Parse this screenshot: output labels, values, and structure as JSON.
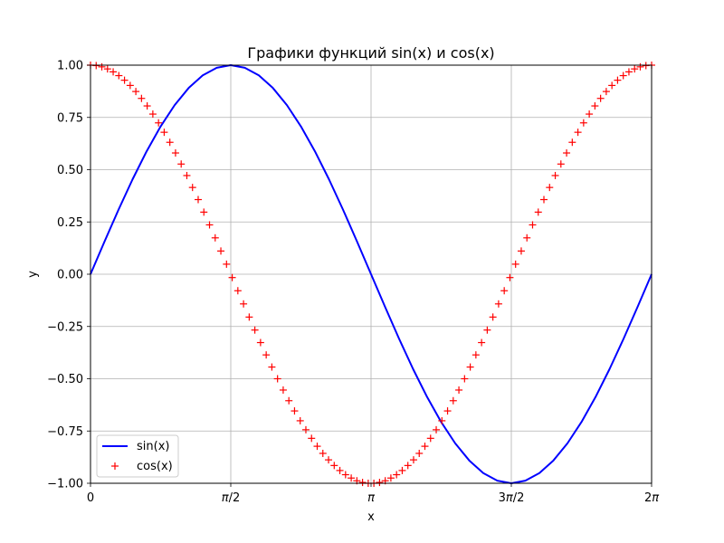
{
  "chart_data": {
    "type": "line",
    "title": "Графики функций sin(x) и cos(x)",
    "xlabel": "x",
    "ylabel": "y",
    "xlim": [
      0,
      6.283185307179586
    ],
    "ylim": [
      -1.0,
      1.0
    ],
    "grid": true,
    "legend_position": "lower-left",
    "x_ticks": [
      {
        "value": 0,
        "label": "0",
        "label_parts": [
          {
            "t": "0",
            "italic": false
          }
        ]
      },
      {
        "value": 1.5707963267948966,
        "label": "π/2",
        "label_parts": [
          {
            "t": "π",
            "italic": true
          },
          {
            "t": "/2",
            "italic": false
          }
        ]
      },
      {
        "value": 3.141592653589793,
        "label": "π",
        "label_parts": [
          {
            "t": "π",
            "italic": true
          }
        ]
      },
      {
        "value": 4.71238898038469,
        "label": "3π/2",
        "label_parts": [
          {
            "t": "3",
            "italic": false
          },
          {
            "t": "π",
            "italic": true
          },
          {
            "t": "/2",
            "italic": false
          }
        ]
      },
      {
        "value": 6.283185307179586,
        "label": "2π",
        "label_parts": [
          {
            "t": "2",
            "italic": false
          },
          {
            "t": "π",
            "italic": true
          }
        ]
      }
    ],
    "y_ticks": [
      {
        "value": 1.0,
        "label": "1.00"
      },
      {
        "value": 0.75,
        "label": "0.75"
      },
      {
        "value": 0.5,
        "label": "0.50"
      },
      {
        "value": 0.25,
        "label": "0.25"
      },
      {
        "value": 0.0,
        "label": "0.00"
      },
      {
        "value": -0.25,
        "label": "−0.25"
      },
      {
        "value": -0.5,
        "label": "−0.50"
      },
      {
        "value": -0.75,
        "label": "−0.75"
      },
      {
        "value": -1.0,
        "label": "−1.00"
      }
    ],
    "series": [
      {
        "name": "sin(x)",
        "style": "line",
        "color": "#0000ff",
        "x": [
          0,
          0.1571,
          0.3142,
          0.4712,
          0.6283,
          0.7854,
          0.9425,
          1.0996,
          1.2566,
          1.4137,
          1.5708,
          1.7279,
          1.885,
          2.042,
          2.1991,
          2.3562,
          2.5133,
          2.6704,
          2.8274,
          2.9845,
          3.1416,
          3.2987,
          3.4558,
          3.6128,
          3.7699,
          3.927,
          4.0841,
          4.2412,
          4.3982,
          4.5553,
          4.7124,
          4.8695,
          5.0265,
          5.1836,
          5.3407,
          5.4978,
          5.6549,
          5.8119,
          5.969,
          6.1261,
          6.2832
        ],
        "y": [
          0.0,
          0.1564,
          0.309,
          0.454,
          0.5878,
          0.7071,
          0.809,
          0.891,
          0.9511,
          0.9877,
          1.0,
          0.9877,
          0.9511,
          0.891,
          0.809,
          0.7071,
          0.5878,
          0.454,
          0.309,
          0.1564,
          0.0,
          -0.1564,
          -0.309,
          -0.454,
          -0.5878,
          -0.7071,
          -0.809,
          -0.891,
          -0.9511,
          -0.9877,
          -1.0,
          -0.9877,
          -0.9511,
          -0.891,
          -0.809,
          -0.7071,
          -0.5878,
          -0.454,
          -0.309,
          -0.1564,
          0.0
        ]
      },
      {
        "name": "cos(x)",
        "style": "marker-plus",
        "color": "#ff0000",
        "x": [
          0,
          0.0635,
          0.1269,
          0.1904,
          0.2539,
          0.3173,
          0.3808,
          0.4443,
          0.5077,
          0.5712,
          0.6347,
          0.6981,
          0.7616,
          0.8251,
          0.8885,
          0.952,
          1.0155,
          1.0789,
          1.1424,
          1.2059,
          1.2693,
          1.3328,
          1.3963,
          1.4597,
          1.5232,
          1.5867,
          1.6501,
          1.7136,
          1.7771,
          1.8405,
          1.904,
          1.9675,
          2.0309,
          2.0944,
          2.1579,
          2.2213,
          2.2848,
          2.3483,
          2.4117,
          2.4752,
          2.5387,
          2.6021,
          2.6656,
          2.7291,
          2.7925,
          2.856,
          2.9195,
          2.9829,
          3.0464,
          3.1099,
          3.1733,
          3.2368,
          3.3003,
          3.3637,
          3.4272,
          3.4907,
          3.5541,
          3.6176,
          3.6811,
          3.7445,
          3.808,
          3.8715,
          3.9349,
          3.9984,
          4.0619,
          4.1253,
          4.1888,
          4.2523,
          4.3157,
          4.3792,
          4.4427,
          4.5061,
          4.5696,
          4.6331,
          4.6965,
          4.76,
          4.8235,
          4.8869,
          4.9504,
          5.0139,
          5.0773,
          5.1408,
          5.2043,
          5.2677,
          5.3312,
          5.3947,
          5.4581,
          5.5216,
          5.5851,
          5.6485,
          5.712,
          5.7755,
          5.8389,
          5.9024,
          5.9659,
          6.0293,
          6.0928,
          6.1563,
          6.2197,
          6.2832
        ],
        "y": [
          1.0,
          0.998,
          0.992,
          0.982,
          0.968,
          0.95,
          0.928,
          0.903,
          0.874,
          0.841,
          0.805,
          0.766,
          0.724,
          0.679,
          0.631,
          0.58,
          0.527,
          0.472,
          0.415,
          0.357,
          0.297,
          0.236,
          0.174,
          0.111,
          0.048,
          -0.016,
          -0.079,
          -0.142,
          -0.205,
          -0.267,
          -0.327,
          -0.386,
          -0.444,
          -0.5,
          -0.554,
          -0.605,
          -0.654,
          -0.701,
          -0.744,
          -0.785,
          -0.823,
          -0.857,
          -0.888,
          -0.915,
          -0.939,
          -0.959,
          -0.975,
          -0.988,
          -0.996,
          -1.0,
          -1.0,
          -0.996,
          -0.988,
          -0.975,
          -0.959,
          -0.939,
          -0.915,
          -0.888,
          -0.857,
          -0.823,
          -0.785,
          -0.744,
          -0.701,
          -0.654,
          -0.605,
          -0.554,
          -0.5,
          -0.444,
          -0.386,
          -0.327,
          -0.267,
          -0.205,
          -0.142,
          -0.079,
          -0.016,
          0.048,
          0.111,
          0.174,
          0.236,
          0.297,
          0.357,
          0.415,
          0.472,
          0.527,
          0.58,
          0.631,
          0.679,
          0.724,
          0.766,
          0.805,
          0.841,
          0.874,
          0.903,
          0.928,
          0.95,
          0.968,
          0.982,
          0.992,
          0.998,
          1.0
        ]
      }
    ]
  }
}
